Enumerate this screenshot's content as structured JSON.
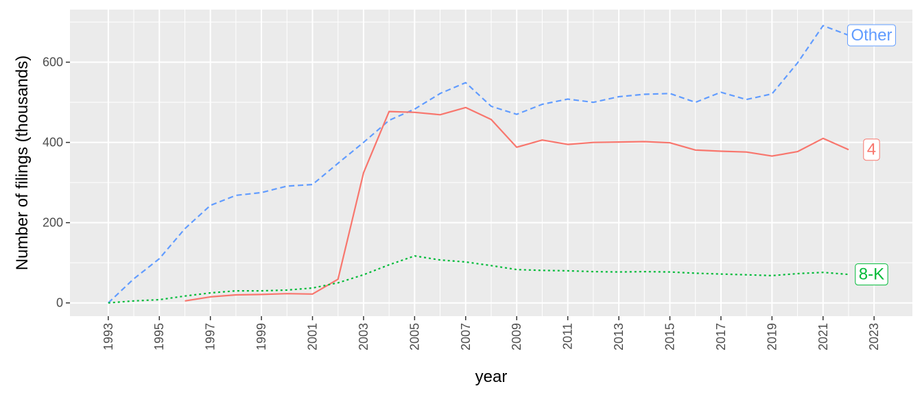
{
  "chart_data": {
    "type": "line",
    "xlabel": "year",
    "ylabel": "Number of filings (thousands)",
    "xlim": [
      1991.5,
      2024.5
    ],
    "ylim": [
      -33,
      731
    ],
    "x_ticks": [
      "1993",
      "1995",
      "1997",
      "1999",
      "2001",
      "2003",
      "2005",
      "2007",
      "2009",
      "2011",
      "2013",
      "2015",
      "2017",
      "2019",
      "2021",
      "2023"
    ],
    "y_ticks": [
      "0",
      "200",
      "400",
      "600"
    ],
    "grid": true,
    "legend": "direct labels at line ends",
    "series": [
      {
        "name": "Other",
        "color": "#619cff",
        "dash": "dashed",
        "x": [
          1993,
          1994,
          1995,
          1996,
          1997,
          1998,
          1999,
          2000,
          2001,
          2002,
          2003,
          2004,
          2005,
          2006,
          2007,
          2008,
          2009,
          2010,
          2011,
          2012,
          2013,
          2014,
          2015,
          2016,
          2017,
          2018,
          2019,
          2020,
          2021,
          2022
        ],
        "values": [
          0,
          60,
          110,
          185,
          243,
          268,
          275,
          291,
          295,
          348,
          400,
          455,
          483,
          522,
          549,
          490,
          470,
          495,
          508,
          500,
          514,
          520,
          522,
          500,
          525,
          507,
          521,
          598,
          691,
          667
        ]
      },
      {
        "name": "4",
        "color": "#f8766d",
        "dash": "solid",
        "x": [
          1996,
          1997,
          1998,
          1999,
          2000,
          2001,
          2002,
          2003,
          2004,
          2005,
          2006,
          2007,
          2008,
          2009,
          2010,
          2011,
          2012,
          2013,
          2014,
          2015,
          2016,
          2017,
          2018,
          2019,
          2020,
          2021,
          2022
        ],
        "values": [
          5,
          15,
          20,
          21,
          23,
          22,
          59,
          324,
          477,
          475,
          469,
          487,
          457,
          388,
          406,
          395,
          400,
          401,
          402,
          399,
          381,
          378,
          376,
          366,
          377,
          410,
          382
        ]
      },
      {
        "name": "8-K",
        "color": "#00ba38",
        "dash": "dotted",
        "x": [
          1993,
          1994,
          1995,
          1996,
          1997,
          1998,
          1999,
          2000,
          2001,
          2002,
          2003,
          2004,
          2005,
          2006,
          2007,
          2008,
          2009,
          2010,
          2011,
          2012,
          2013,
          2014,
          2015,
          2016,
          2017,
          2018,
          2019,
          2020,
          2021,
          2022
        ],
        "values": [
          0,
          5,
          8,
          17,
          25,
          30,
          30,
          32,
          37,
          50,
          70,
          95,
          117,
          107,
          102,
          93,
          83,
          81,
          80,
          78,
          77,
          78,
          77,
          74,
          72,
          70,
          68,
          73,
          76,
          71
        ]
      }
    ]
  }
}
